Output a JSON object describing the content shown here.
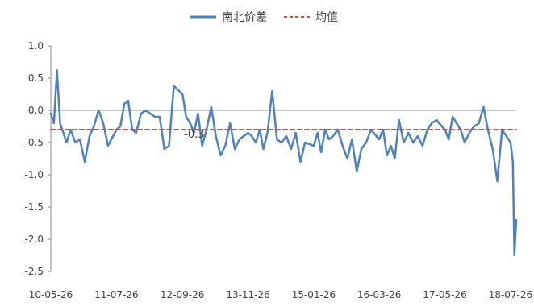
{
  "chart_data": {
    "type": "line",
    "title": "",
    "xlabel": "",
    "ylabel": "",
    "ylim": [
      -2.5,
      1.0
    ],
    "y_ticks": [
      "1.0",
      "0.5",
      "0.0",
      "-0.5",
      "-1.0",
      "-1.5",
      "-2.0",
      "-2.5"
    ],
    "y_tick_values": [
      1.0,
      0.5,
      0.0,
      -0.5,
      -1.0,
      -1.5,
      -2.0,
      -2.5
    ],
    "x_ticks": [
      "10-05-26",
      "11-07-26",
      "12-09-26",
      "13-11-26",
      "15-01-26",
      "16-03-26",
      "17-05-26",
      "18-07-26"
    ],
    "grid": false,
    "legend_position": "top-center",
    "annotation": {
      "text": "-0.3",
      "x": "12-09-26",
      "y": -0.3
    },
    "series": [
      {
        "name": "南北价差",
        "style": "solid",
        "color": "#4f81bd",
        "x": [
          "10-05-26",
          "10-06-15",
          "10-07-05",
          "10-07-25",
          "10-08-15",
          "10-09-05",
          "10-10-01",
          "10-11-01",
          "10-12-01",
          "11-01-01",
          "11-02-01",
          "11-03-01",
          "11-04-01",
          "11-05-01",
          "11-06-01",
          "11-07-26",
          "11-08-20",
          "11-09-15",
          "11-10-10",
          "11-11-05",
          "11-12-01",
          "12-01-01",
          "12-02-01",
          "12-03-01",
          "12-04-01",
          "12-05-01",
          "12-06-01",
          "12-07-01",
          "12-08-01",
          "12-09-26",
          "12-10-20",
          "12-11-15",
          "12-12-10",
          "13-01-05",
          "13-02-01",
          "13-03-01",
          "13-04-01",
          "13-05-01",
          "13-06-01",
          "13-07-01",
          "13-08-01",
          "13-09-01",
          "13-10-01",
          "13-11-26",
          "13-12-20",
          "14-01-15",
          "14-02-10",
          "14-03-05",
          "14-04-01",
          "14-05-01",
          "14-06-01",
          "14-07-01",
          "14-08-01",
          "14-09-01",
          "14-10-01",
          "14-11-01",
          "14-12-01",
          "15-01-26",
          "15-02-20",
          "15-03-15",
          "15-04-10",
          "15-05-05",
          "15-06-01",
          "15-07-01",
          "15-08-01",
          "15-09-01",
          "15-10-01",
          "15-11-01",
          "15-12-01",
          "16-01-01",
          "16-02-01",
          "16-03-26",
          "16-04-20",
          "16-05-15",
          "16-06-10",
          "16-07-05",
          "16-08-01",
          "16-09-01",
          "16-10-01",
          "16-11-01",
          "16-12-01",
          "17-01-01",
          "17-02-01",
          "17-03-01",
          "17-04-01",
          "17-05-26",
          "17-06-20",
          "17-07-15",
          "17-08-10",
          "17-09-05",
          "17-10-01",
          "17-11-01",
          "17-12-01",
          "18-01-01",
          "18-02-01",
          "18-03-01",
          "18-04-01",
          "18-05-01",
          "18-06-01",
          "18-07-26",
          "18-08-10",
          "18-08-20",
          "18-09-01"
        ],
        "y": [
          -0.05,
          -0.2,
          0.62,
          -0.2,
          -0.35,
          -0.5,
          -0.3,
          -0.5,
          -0.45,
          -0.8,
          -0.4,
          -0.25,
          0.0,
          -0.2,
          -0.55,
          -0.3,
          -0.25,
          0.1,
          0.15,
          -0.3,
          -0.35,
          -0.05,
          0.0,
          -0.05,
          -0.1,
          -0.1,
          -0.6,
          -0.55,
          0.38,
          0.25,
          -0.1,
          -0.2,
          -0.35,
          -0.05,
          -0.55,
          -0.3,
          0.05,
          -0.4,
          -0.7,
          -0.55,
          -0.2,
          -0.6,
          -0.45,
          -0.35,
          -0.4,
          -0.5,
          -0.3,
          -0.6,
          -0.35,
          0.3,
          -0.45,
          -0.5,
          -0.4,
          -0.6,
          -0.35,
          -0.8,
          -0.5,
          -0.55,
          -0.35,
          -0.65,
          -0.3,
          -0.45,
          -0.4,
          -0.3,
          -0.55,
          -0.75,
          -0.45,
          -0.95,
          -0.6,
          -0.5,
          -0.3,
          -0.45,
          -0.3,
          -0.7,
          -0.55,
          -0.75,
          -0.15,
          -0.5,
          -0.35,
          -0.5,
          -0.4,
          -0.55,
          -0.3,
          -0.2,
          -0.15,
          -0.3,
          -0.45,
          -0.1,
          -0.2,
          -0.3,
          -0.5,
          -0.35,
          -0.25,
          -0.2,
          0.05,
          -0.3,
          -0.6,
          -1.1,
          -0.3,
          -0.5,
          -0.8,
          -2.25,
          -1.7
        ]
      },
      {
        "name": "均值",
        "style": "dashed",
        "color": "#c0504d",
        "x": [
          "10-05-26",
          "18-09-01"
        ],
        "y": [
          -0.3,
          -0.3
        ]
      }
    ]
  }
}
